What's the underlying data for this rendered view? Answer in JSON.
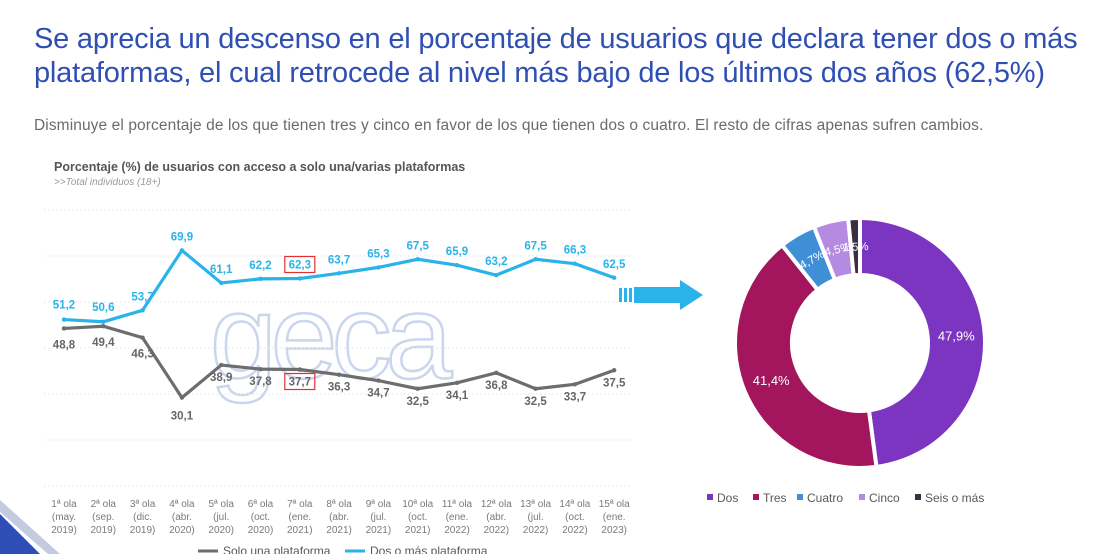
{
  "header": {
    "title": "Se aprecia un descenso en el porcentaje de usuarios que declara tener dos o más plataformas, el cual retrocede al nivel más bajo de los últimos dos años (62,5%)",
    "subtitle": "Disminuye el porcentaje de los que tienen tres y cinco en favor de los que tienen dos o cuatro. El resto de cifras apenas sufren cambios."
  },
  "watermark": "geca",
  "chart_data": [
    {
      "type": "line",
      "title": "Porcentaje (%) de usuarios con acceso a solo una/varias plataformas",
      "subtitle": ">>Total individuos (18+)",
      "categories": [
        [
          "1ª ola",
          "(may.",
          "2019)"
        ],
        [
          "2ª ola",
          "(sep.",
          "2019)"
        ],
        [
          "3ª ola",
          "(dic.",
          "2019)"
        ],
        [
          "4ª ola",
          "(abr.",
          "2020)"
        ],
        [
          "5ª ola",
          "(jul.",
          "2020)"
        ],
        [
          "6ª ola",
          "(oct.",
          "2020)"
        ],
        [
          "7ª ola",
          "(ene.",
          "2021)"
        ],
        [
          "8ª ola",
          "(abr.",
          "2021)"
        ],
        [
          "9ª ola",
          "(jul.",
          "2021)"
        ],
        [
          "10ª ola",
          "(oct.",
          "2021)"
        ],
        [
          "11ª ola",
          "(ene.",
          "2022)"
        ],
        [
          "12ª ola",
          "(abr.",
          "2022)"
        ],
        [
          "13ª ola",
          "(jul.",
          "2022)"
        ],
        [
          "14ª ola",
          "(oct.",
          "2022)"
        ],
        [
          "15ª ola",
          "(ene.",
          "2023)"
        ]
      ],
      "series": [
        {
          "name": "Solo una plataforma",
          "color": "#6d6d6d",
          "values": [
            48.8,
            49.4,
            46.3,
            30.1,
            38.9,
            37.8,
            37.7,
            36.3,
            34.7,
            32.5,
            34.1,
            36.8,
            32.5,
            33.7,
            37.5
          ],
          "labels": [
            "48,8",
            "49,4",
            "46,3",
            "30,1",
            "38,9",
            "37,8",
            "37,7",
            "36,3",
            "34,7",
            "32,5",
            "34,1",
            "36,8",
            "32,5",
            "33,7",
            "37,5"
          ]
        },
        {
          "name": "Dos o más plataforma",
          "color": "#2ab3ea",
          "values": [
            51.2,
            50.6,
            53.7,
            69.9,
            61.1,
            62.2,
            62.3,
            63.7,
            65.3,
            67.5,
            65.9,
            63.2,
            67.5,
            66.3,
            62.5
          ],
          "labels": [
            "51,2",
            "50,6",
            "53,7",
            "69,9",
            "61,1",
            "62,2",
            "62,3",
            "63,7",
            "65,3",
            "67,5",
            "65,9",
            "63,2",
            "67,5",
            "66,3",
            "62,5"
          ]
        }
      ],
      "highlighted_category": "7ª ola",
      "highlight_color": "#e03030",
      "ylim": [
        20,
        80
      ]
    },
    {
      "type": "pie",
      "variant": "donut",
      "labels": [
        "Dos",
        "Tres",
        "Cuatro",
        "Cinco",
        "Seis o más"
      ],
      "values": [
        47.9,
        41.4,
        4.7,
        4.5,
        1.5
      ],
      "value_labels": [
        "47,9%",
        "41,4%",
        "4,7%",
        "4,5%",
        "1,5%"
      ],
      "colors": [
        "#7b35c1",
        "#a3155c",
        "#3f8fd6",
        "#b48be0",
        "#3b2f43"
      ],
      "legend_position": "bottom"
    }
  ],
  "colors": {
    "title": "#2f4fb4",
    "arrow": "#2ab3ea",
    "corner": "#2d4eb6"
  }
}
